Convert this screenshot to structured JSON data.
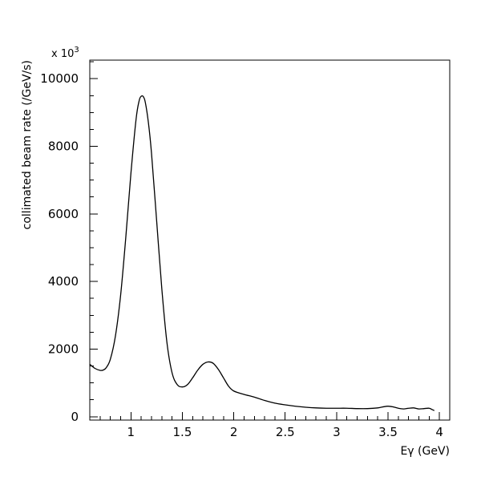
{
  "chart_data": {
    "type": "line",
    "title": "",
    "xlabel": "Eγ (GeV)",
    "ylabel": "collimated beam rate (/GeV/s)",
    "y_multiplier": {
      "base": "x 10",
      "exponent": "3"
    },
    "xlim": [
      0.6,
      4.1
    ],
    "ylim": [
      -100,
      10550
    ],
    "x_ticks": [
      1,
      1.5,
      2,
      2.5,
      3,
      3.5,
      4
    ],
    "x_tick_labels": [
      "1",
      "1.5",
      "2",
      "2.5",
      "3",
      "3.5",
      "4"
    ],
    "y_ticks": [
      0,
      2000,
      4000,
      6000,
      8000,
      10000
    ],
    "y_tick_labels": [
      "0",
      "2000",
      "4000",
      "6000",
      "8000",
      "10000"
    ],
    "x_minor_step": 0.1,
    "y_minor_step": 500,
    "grid": false,
    "legend": "none",
    "series": [
      {
        "x": [
          0.6,
          0.65,
          0.7,
          0.73,
          0.76,
          0.8,
          0.85,
          0.9,
          0.95,
          1.0,
          1.05,
          1.08,
          1.1,
          1.12,
          1.14,
          1.17,
          1.2,
          1.25,
          1.3,
          1.35,
          1.4,
          1.45,
          1.5,
          1.55,
          1.6,
          1.65,
          1.7,
          1.75,
          1.8,
          1.85,
          1.9,
          1.95,
          2.0,
          2.1,
          2.2,
          2.3,
          2.4,
          2.5,
          2.6,
          2.7,
          2.8,
          2.9,
          3.0,
          3.1,
          3.2,
          3.3,
          3.4,
          3.45,
          3.5,
          3.55,
          3.6,
          3.65,
          3.7,
          3.75,
          3.8,
          3.85,
          3.9,
          3.93,
          3.95
        ],
        "y": [
          1550,
          1430,
          1370,
          1380,
          1450,
          1700,
          2400,
          3600,
          5300,
          7200,
          8800,
          9350,
          9480,
          9470,
          9300,
          8700,
          7800,
          5800,
          3800,
          2200,
          1300,
          950,
          880,
          950,
          1150,
          1380,
          1550,
          1620,
          1580,
          1400,
          1150,
          900,
          760,
          660,
          580,
          480,
          400,
          350,
          310,
          280,
          260,
          250,
          250,
          250,
          240,
          240,
          260,
          290,
          310,
          290,
          250,
          230,
          250,
          260,
          230,
          240,
          250,
          210,
          180
        ]
      }
    ]
  }
}
